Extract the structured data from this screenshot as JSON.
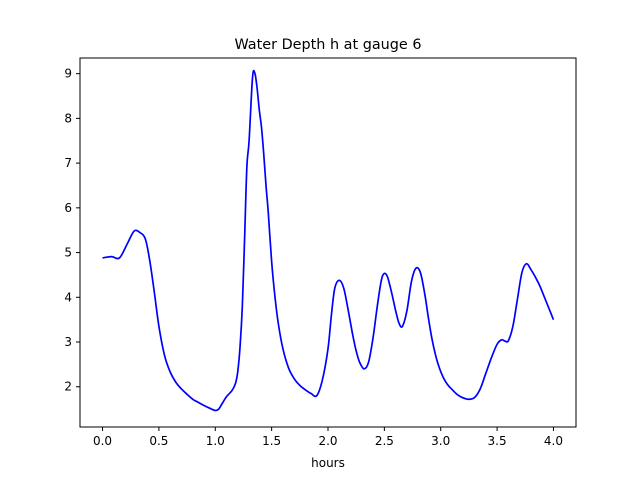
{
  "chart_data": {
    "type": "line",
    "title": "Water Depth h at gauge 6",
    "xlabel": "hours",
    "ylabel": "",
    "xlim": [
      -0.2,
      4.2
    ],
    "ylim": [
      1.1,
      9.35
    ],
    "xticks": [
      0.0,
      0.5,
      1.0,
      1.5,
      2.0,
      2.5,
      3.0,
      3.5,
      4.0
    ],
    "xtick_labels": [
      "0.0",
      "0.5",
      "1.0",
      "1.5",
      "2.0",
      "2.5",
      "3.0",
      "3.5",
      "4.0"
    ],
    "yticks": [
      2,
      3,
      4,
      5,
      6,
      7,
      8,
      9
    ],
    "ytick_labels": [
      "2",
      "3",
      "4",
      "5",
      "6",
      "7",
      "8",
      "9"
    ],
    "grid": false,
    "series": [
      {
        "color": "#0000ff",
        "x": [
          0.0,
          0.08,
          0.15,
          0.22,
          0.28,
          0.33,
          0.38,
          0.42,
          0.46,
          0.5,
          0.55,
          0.6,
          0.65,
          0.7,
          0.75,
          0.8,
          0.85,
          0.9,
          0.95,
          1.0,
          1.03,
          1.06,
          1.1,
          1.15,
          1.18,
          1.2,
          1.22,
          1.24,
          1.26,
          1.28,
          1.3,
          1.33,
          1.35,
          1.37,
          1.39,
          1.41,
          1.43,
          1.45,
          1.47,
          1.5,
          1.53,
          1.56,
          1.6,
          1.65,
          1.7,
          1.75,
          1.8,
          1.85,
          1.9,
          1.95,
          2.0,
          2.03,
          2.06,
          2.1,
          2.14,
          2.18,
          2.22,
          2.25,
          2.28,
          2.32,
          2.36,
          2.4,
          2.44,
          2.48,
          2.52,
          2.56,
          2.6,
          2.63,
          2.66,
          2.7,
          2.74,
          2.78,
          2.82,
          2.86,
          2.89,
          2.92,
          2.95,
          2.98,
          3.02,
          3.06,
          3.1,
          3.15,
          3.2,
          3.25,
          3.3,
          3.35,
          3.4,
          3.45,
          3.5,
          3.54,
          3.57,
          3.6,
          3.64,
          3.68,
          3.72,
          3.76,
          3.8,
          3.84,
          3.88,
          3.92,
          3.96,
          4.0
        ],
        "values": [
          4.88,
          4.91,
          4.88,
          5.2,
          5.48,
          5.45,
          5.3,
          4.8,
          4.1,
          3.35,
          2.7,
          2.33,
          2.1,
          1.95,
          1.83,
          1.72,
          1.65,
          1.58,
          1.52,
          1.47,
          1.5,
          1.62,
          1.78,
          1.92,
          2.08,
          2.35,
          2.9,
          3.8,
          5.3,
          6.9,
          7.5,
          8.9,
          9.02,
          8.7,
          8.2,
          7.8,
          7.2,
          6.5,
          5.9,
          4.8,
          4.0,
          3.4,
          2.85,
          2.42,
          2.18,
          2.03,
          1.93,
          1.85,
          1.8,
          2.15,
          2.85,
          3.6,
          4.2,
          4.38,
          4.2,
          3.7,
          3.15,
          2.8,
          2.55,
          2.4,
          2.55,
          3.1,
          3.85,
          4.45,
          4.5,
          4.15,
          3.7,
          3.42,
          3.35,
          3.7,
          4.35,
          4.65,
          4.55,
          4.05,
          3.55,
          3.1,
          2.75,
          2.48,
          2.22,
          2.05,
          1.94,
          1.82,
          1.75,
          1.72,
          1.76,
          1.95,
          2.3,
          2.65,
          2.95,
          3.05,
          3.02,
          3.03,
          3.35,
          3.95,
          4.55,
          4.75,
          4.62,
          4.45,
          4.25,
          4.0,
          3.75,
          3.5
        ]
      }
    ]
  }
}
